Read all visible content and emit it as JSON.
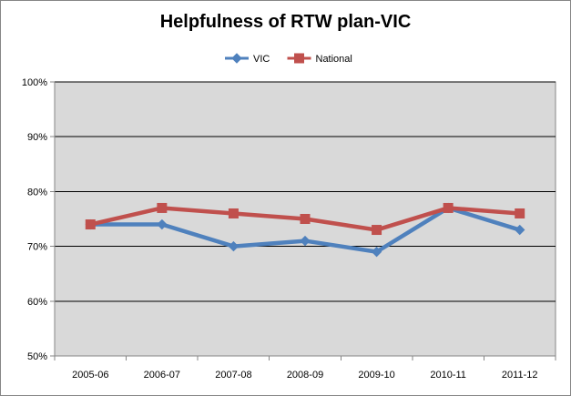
{
  "chart_data": {
    "type": "line",
    "title": "Helpfulness of RTW plan-VIC",
    "xlabel": "",
    "ylabel": "",
    "categories": [
      "2005-06",
      "2006-07",
      "2007-08",
      "2008-09",
      "2009-10",
      "2010-11",
      "2011-12"
    ],
    "series": [
      {
        "name": "VIC",
        "values": [
          74,
          74,
          70,
          71,
          69,
          77,
          73
        ],
        "color": "#4F81BD",
        "marker": "diamond"
      },
      {
        "name": "National",
        "values": [
          74,
          77,
          76,
          75,
          73,
          77,
          76
        ],
        "color": "#C0504D",
        "marker": "square"
      }
    ],
    "ylim": [
      50,
      100
    ],
    "yticks": [
      {
        "value": 50,
        "label": "50%"
      },
      {
        "value": 60,
        "label": "60%"
      },
      {
        "value": 70,
        "label": "70%"
      },
      {
        "value": 80,
        "label": "80%"
      },
      {
        "value": 90,
        "label": "90%"
      },
      {
        "value": 100,
        "label": "100%"
      }
    ],
    "grid": true,
    "legend": "top-center",
    "plot_background": "#D9D9D9"
  }
}
